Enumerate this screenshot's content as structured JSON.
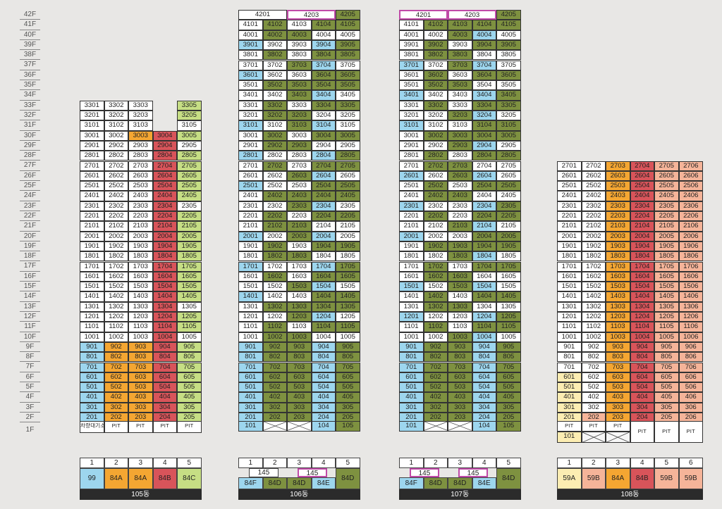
{
  "floors": [
    "42F",
    "41F",
    "40F",
    "39F",
    "38F",
    "37F",
    "36F",
    "35F",
    "34F",
    "33F",
    "32F",
    "31F",
    "30F",
    "29F",
    "28F",
    "27F",
    "26F",
    "25F",
    "24F",
    "23F",
    "22F",
    "21F",
    "20F",
    "19F",
    "18F",
    "17F",
    "16F",
    "15F",
    "14F",
    "13F",
    "12F",
    "11F",
    "10F",
    "9F",
    "8F",
    "7F",
    "6F",
    "5F",
    "4F",
    "3F",
    "2F",
    "1F"
  ],
  "colors": {
    "white": "#ffffff",
    "green": "#7e9140",
    "lightgreen": "#c6de84",
    "blue": "#9dd6ee",
    "yellow": "#f4a632",
    "red": "#d8545a",
    "salmon": "#f5b499",
    "cream": "#fcedb2"
  },
  "buildings": [
    {
      "name": "105동",
      "types": [
        {
          "num": "1",
          "label": "99",
          "color": "blue"
        },
        {
          "num": "2",
          "label": "84A",
          "color": "yellow"
        },
        {
          "num": "3",
          "label": "84A",
          "color": "yellow"
        },
        {
          "num": "4",
          "label": "84B",
          "color": "red"
        },
        {
          "num": "5",
          "label": "84C",
          "color": "lightgreen"
        }
      ],
      "pit_labels": [
        "차량대기소",
        "PIT",
        "PIT",
        "PIT",
        "PIT"
      ]
    },
    {
      "name": "106동",
      "types": [
        {
          "num": "1",
          "label": "84F",
          "color": "blue"
        },
        {
          "num": "2",
          "label": "84D",
          "color": "green"
        },
        {
          "num": "3",
          "label": "84D",
          "color": "green"
        },
        {
          "num": "4",
          "label": "84E",
          "color": "blue"
        },
        {
          "num": "5",
          "label": "84D",
          "color": "green"
        }
      ],
      "merged": [
        "145",
        "145"
      ],
      "top_units": [
        "4201",
        "4203",
        "4205"
      ],
      "ground_units": [
        "101",
        "",
        "",
        "104",
        "105"
      ]
    },
    {
      "name": "107동",
      "types": [
        {
          "num": "1",
          "label": "84F",
          "color": "blue"
        },
        {
          "num": "2",
          "label": "84D",
          "color": "green"
        },
        {
          "num": "3",
          "label": "84D",
          "color": "green"
        },
        {
          "num": "4",
          "label": "84E",
          "color": "blue"
        },
        {
          "num": "5",
          "label": "84D",
          "color": "green"
        }
      ],
      "merged": [
        "145",
        "145"
      ],
      "top_units": [
        "4201",
        "4203",
        "4205"
      ],
      "ground_units": [
        "101",
        "",
        "",
        "104",
        "105"
      ]
    },
    {
      "name": "108동",
      "types": [
        {
          "num": "1",
          "label": "59A",
          "color": "cream"
        },
        {
          "num": "2",
          "label": "59B",
          "color": "salmon"
        },
        {
          "num": "3",
          "label": "84A",
          "color": "yellow"
        },
        {
          "num": "4",
          "label": "84B",
          "color": "red"
        },
        {
          "num": "5",
          "label": "59B",
          "color": "salmon"
        },
        {
          "num": "6",
          "label": "59B",
          "color": "salmon"
        }
      ],
      "pit_labels": [
        "PIT",
        "PIT",
        "PIT",
        "PIT",
        "PIT",
        "PIT"
      ],
      "ground_units": [
        "101"
      ]
    }
  ]
}
